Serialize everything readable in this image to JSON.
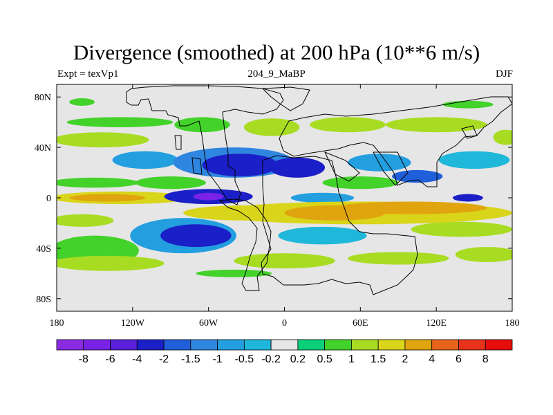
{
  "chart_data": {
    "type": "heatmap",
    "title": "Divergence (smoothed) at 200 hPa (10**6 m/s)",
    "left_string": "Expt = texVp1",
    "center_string": "204_9_MaBP",
    "right_string": "DJF",
    "xlim": [
      -180,
      180
    ],
    "ylim": [
      -90,
      90
    ],
    "x_ticks": [
      {
        "value": -180,
        "label": "180"
      },
      {
        "value": -120,
        "label": "120W"
      },
      {
        "value": -60,
        "label": "60W"
      },
      {
        "value": 0,
        "label": "0"
      },
      {
        "value": 60,
        "label": "60E"
      },
      {
        "value": 120,
        "label": "120E"
      },
      {
        "value": 180,
        "label": "180"
      }
    ],
    "y_ticks": [
      {
        "value": 80,
        "label": "80N"
      },
      {
        "value": 40,
        "label": "40N"
      },
      {
        "value": 0,
        "label": "0"
      },
      {
        "value": -40,
        "label": "40S"
      },
      {
        "value": -80,
        "label": "80S"
      }
    ],
    "colorbar": {
      "labels": [
        "-8",
        "-6",
        "-4",
        "-2",
        "-1.5",
        "-1",
        "-0.5",
        "-0.2",
        "0.2",
        "0.5",
        "1",
        "1.5",
        "2",
        "4",
        "6",
        "8"
      ],
      "colors": [
        "#8a2be2",
        "#7a22e6",
        "#5a1fd8",
        "#1b1fc7",
        "#1f5fd9",
        "#2f86e0",
        "#239fe0",
        "#1fb8db",
        "#e6e6e6",
        "#0bd07a",
        "#43d22a",
        "#a8dc22",
        "#d9d51a",
        "#e0a50e",
        "#e8641a",
        "#e8321a",
        "#e60d0d"
      ]
    },
    "blobs": [
      {
        "lon": -145,
        "lat": 46,
        "rlon": 38,
        "rlat": 6,
        "value": 1.0
      },
      {
        "lon": -130,
        "lat": 60,
        "rlon": 42,
        "rlat": 4,
        "value": 0.5
      },
      {
        "lon": -65,
        "lat": 58,
        "rlon": 22,
        "rlat": 6,
        "value": 0.5
      },
      {
        "lon": -10,
        "lat": 56,
        "rlon": 22,
        "rlat": 7,
        "value": 1.0
      },
      {
        "lon": 50,
        "lat": 58,
        "rlon": 30,
        "rlat": 6,
        "value": 1.0
      },
      {
        "lon": 120,
        "lat": 58,
        "rlon": 40,
        "rlat": 6,
        "value": 1.0
      },
      {
        "lon": 175,
        "lat": 48,
        "rlon": 10,
        "rlat": 6,
        "value": 1.0
      },
      {
        "lon": -110,
        "lat": 30,
        "rlon": 26,
        "rlat": 7,
        "value": -1.0
      },
      {
        "lon": -40,
        "lat": 28,
        "rlon": 48,
        "rlat": 12,
        "value": -1.5
      },
      {
        "lon": -35,
        "lat": 26,
        "rlon": 30,
        "rlat": 9,
        "value": -4.0
      },
      {
        "lon": 10,
        "lat": 24,
        "rlon": 22,
        "rlat": 8,
        "value": -4.0
      },
      {
        "lon": 75,
        "lat": 28,
        "rlon": 25,
        "rlat": 7,
        "value": -1.0
      },
      {
        "lon": 105,
        "lat": 17,
        "rlon": 20,
        "rlat": 5,
        "value": -2.0
      },
      {
        "lon": 150,
        "lat": 30,
        "rlon": 28,
        "rlat": 7,
        "value": -0.5
      },
      {
        "lon": -150,
        "lat": 12,
        "rlon": 35,
        "rlat": 4,
        "value": 0.5
      },
      {
        "lon": -90,
        "lat": 12,
        "rlon": 28,
        "rlat": 5,
        "value": 0.5
      },
      {
        "lon": 60,
        "lat": 12,
        "rlon": 30,
        "rlat": 5,
        "value": 0.5
      },
      {
        "lon": -130,
        "lat": 0,
        "rlon": 55,
        "rlat": 5,
        "value": 1.5
      },
      {
        "lon": -140,
        "lat": 0,
        "rlon": 30,
        "rlat": 3,
        "value": 2.0
      },
      {
        "lon": -60,
        "lat": 1,
        "rlon": 35,
        "rlat": 6,
        "value": -4.0
      },
      {
        "lon": -60,
        "lat": 1,
        "rlon": 12,
        "rlat": 3,
        "value": -8.0
      },
      {
        "lon": 30,
        "lat": 0,
        "rlon": 25,
        "rlat": 4,
        "value": -1.0
      },
      {
        "lon": 145,
        "lat": 0,
        "rlon": 12,
        "rlat": 3,
        "value": -4.0
      },
      {
        "lon": -30,
        "lat": -12,
        "rlon": 50,
        "rlat": 6,
        "value": 1.5
      },
      {
        "lon": 60,
        "lat": -12,
        "rlon": 120,
        "rlat": 9,
        "value": 1.5
      },
      {
        "lon": 100,
        "lat": -8,
        "rlon": 60,
        "rlat": 5,
        "value": 2.0
      },
      {
        "lon": 40,
        "lat": -12,
        "rlon": 40,
        "rlat": 6,
        "value": 2.0
      },
      {
        "lon": -160,
        "lat": -18,
        "rlon": 25,
        "rlat": 5,
        "value": 1.0
      },
      {
        "lon": -150,
        "lat": -42,
        "rlon": 35,
        "rlat": 12,
        "value": 0.5
      },
      {
        "lon": -80,
        "lat": -30,
        "rlon": 42,
        "rlat": 14,
        "value": -1.0
      },
      {
        "lon": -70,
        "lat": -30,
        "rlon": 28,
        "rlat": 9,
        "value": -4.0
      },
      {
        "lon": 30,
        "lat": -30,
        "rlon": 35,
        "rlat": 7,
        "value": -0.5
      },
      {
        "lon": 140,
        "lat": -25,
        "rlon": 40,
        "rlat": 6,
        "value": 1.0
      },
      {
        "lon": -140,
        "lat": -52,
        "rlon": 45,
        "rlat": 6,
        "value": 1.0
      },
      {
        "lon": 0,
        "lat": -50,
        "rlon": 40,
        "rlat": 6,
        "value": 1.0
      },
      {
        "lon": 90,
        "lat": -48,
        "rlon": 40,
        "rlat": 5,
        "value": 1.0
      },
      {
        "lon": 160,
        "lat": -45,
        "rlon": 25,
        "rlat": 6,
        "value": 1.0
      },
      {
        "lon": -40,
        "lat": -60,
        "rlon": 30,
        "rlat": 3,
        "value": 0.5
      },
      {
        "lon": -160,
        "lat": 76,
        "rlon": 10,
        "rlat": 3,
        "value": 0.5
      },
      {
        "lon": 145,
        "lat": 74,
        "rlon": 20,
        "rlat": 3,
        "value": 0.5
      }
    ]
  }
}
